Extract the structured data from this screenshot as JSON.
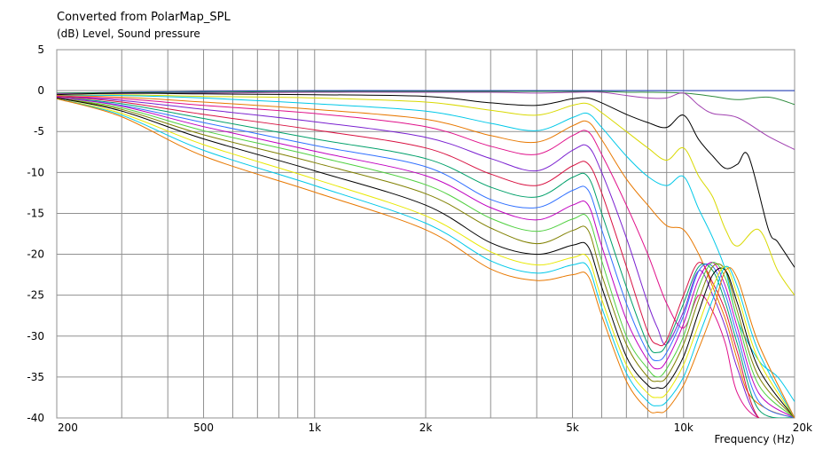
{
  "header": {
    "title": "Converted from PolarMap_SPL",
    "subtitle": "(dB)  Level, Sound pressure"
  },
  "chart_data": {
    "type": "line",
    "title": "Converted from PolarMap_SPL",
    "ylabel": "(dB)  Level, Sound pressure",
    "xlabel": "Frequency  (Hz)",
    "x_scale": "log",
    "xlim": [
      200,
      20000
    ],
    "ylim": [
      -40,
      5
    ],
    "grid": true,
    "y_ticks": [
      5,
      0,
      -5,
      -10,
      -15,
      -20,
      -25,
      -30,
      -35,
      -40
    ],
    "x_tick_labels": [
      {
        "value": 200,
        "label": "200"
      },
      {
        "value": 500,
        "label": "500"
      },
      {
        "value": 1000,
        "label": "1k"
      },
      {
        "value": 2000,
        "label": "2k"
      },
      {
        "value": 5000,
        "label": "5k"
      },
      {
        "value": 10000,
        "label": "10k"
      },
      {
        "value": 20000,
        "label": "20k"
      }
    ],
    "x_grid": [
      200,
      300,
      400,
      500,
      600,
      700,
      800,
      900,
      1000,
      2000,
      3000,
      4000,
      5000,
      6000,
      7000,
      8000,
      9000,
      10000,
      20000
    ],
    "series": [
      {
        "color": "#1f3cc0",
        "x": [
          200,
          500,
          1000,
          2000,
          5000,
          10000,
          20000
        ],
        "y": [
          -0.3,
          -0.1,
          0,
          0,
          0,
          0,
          0
        ]
      },
      {
        "color": "#2e8b3d",
        "x": [
          200,
          500,
          1000,
          2000,
          3000,
          4000,
          5000,
          6000,
          7000,
          8000,
          10000,
          12000,
          14000,
          17000,
          20000
        ],
        "y": [
          -0.3,
          -0.2,
          -0.1,
          -0.1,
          -0.1,
          -0.1,
          -0.1,
          -0.1,
          -0.2,
          -0.2,
          -0.3,
          -0.7,
          -1.1,
          -0.8,
          -1.7
        ]
      },
      {
        "color": "#a040b0",
        "x": [
          200,
          500,
          1000,
          2000,
          3000,
          4000,
          5000,
          6000,
          7000,
          8000,
          9000,
          10000,
          11000,
          12000,
          14000,
          17000,
          20000
        ],
        "y": [
          -0.4,
          -0.3,
          -0.2,
          -0.2,
          -0.2,
          -0.3,
          -0.2,
          -0.2,
          -0.6,
          -0.9,
          -0.9,
          -0.3,
          -1.8,
          -2.8,
          -3.3,
          -5.6,
          -7.2
        ]
      },
      {
        "color": "#000000",
        "x": [
          200,
          300,
          500,
          1000,
          2000,
          3000,
          4000,
          5000,
          5500,
          6000,
          7000,
          8000,
          9000,
          10000,
          11000,
          12000,
          13000,
          14000,
          15000,
          17000,
          18000,
          20000
        ],
        "y": [
          -0.5,
          -0.3,
          -0.4,
          -0.5,
          -0.7,
          -1.5,
          -1.8,
          -1.0,
          -0.9,
          -1.5,
          -2.9,
          -3.9,
          -4.5,
          -3.0,
          -6.0,
          -8.0,
          -9.5,
          -9.0,
          -8.0,
          -17.0,
          -18.5,
          -21.6
        ]
      },
      {
        "color": "#d9d900",
        "x": [
          200,
          300,
          500,
          1000,
          2000,
          3000,
          4000,
          5000,
          5500,
          6000,
          7000,
          8000,
          9000,
          10000,
          11000,
          12000,
          13000,
          14000,
          16000,
          18000,
          20000
        ],
        "y": [
          -0.6,
          -0.5,
          -0.7,
          -0.9,
          -1.4,
          -2.4,
          -3.0,
          -1.8,
          -1.6,
          -2.7,
          -5.0,
          -7.0,
          -8.5,
          -7.0,
          -10.5,
          -13.0,
          -17.0,
          -19.0,
          -17.0,
          -22.0,
          -25.0
        ]
      },
      {
        "color": "#00c8e8",
        "x": [
          200,
          300,
          500,
          1000,
          2000,
          3000,
          4000,
          5000,
          5500,
          6000,
          7000,
          8000,
          9000,
          10000,
          11000,
          12000,
          13000,
          14000,
          16000,
          18000,
          20000
        ],
        "y": [
          -0.6,
          -0.6,
          -0.9,
          -1.6,
          -2.5,
          -4.0,
          -4.9,
          -3.3,
          -2.8,
          -4.5,
          -8.0,
          -10.5,
          -11.6,
          -10.5,
          -14.5,
          -18.0,
          -22.0,
          -28.0,
          -33.0,
          -35.0,
          -38.0
        ]
      },
      {
        "color": "#e87800",
        "x": [
          200,
          300,
          500,
          1000,
          2000,
          3000,
          4000,
          5000,
          5500,
          6000,
          7000,
          8000,
          9000,
          10000,
          11000,
          12000,
          13000,
          14000,
          15000,
          17000,
          20000
        ],
        "y": [
          -0.6,
          -0.8,
          -1.4,
          -2.3,
          -3.5,
          -5.5,
          -6.3,
          -4.3,
          -3.8,
          -6.0,
          -10.8,
          -14.0,
          -16.5,
          -17.0,
          -20.0,
          -24.0,
          -28.0,
          -33.0,
          -37.0,
          -39.0,
          -40.0
        ]
      },
      {
        "color": "#e0108a",
        "x": [
          200,
          300,
          500,
          1000,
          2000,
          3000,
          4000,
          5000,
          5500,
          6000,
          7000,
          8000,
          9000,
          10000,
          11000,
          12000,
          13000,
          14000,
          16000,
          20000
        ],
        "y": [
          -0.7,
          -1.0,
          -1.8,
          -2.8,
          -4.4,
          -6.8,
          -7.8,
          -5.5,
          -5.0,
          -7.8,
          -14.0,
          -20.0,
          -26.0,
          -29.0,
          -25.0,
          -27.0,
          -31.0,
          -37.0,
          -40.0,
          -40.0
        ]
      },
      {
        "color": "#7a20d0",
        "x": [
          200,
          300,
          500,
          1000,
          2000,
          3000,
          4000,
          5000,
          5500,
          6000,
          7000,
          8000,
          8500,
          9000,
          10000,
          11000,
          12000,
          13000,
          14000,
          16000,
          20000
        ],
        "y": [
          -0.7,
          -1.2,
          -2.3,
          -3.8,
          -5.7,
          -8.3,
          -9.8,
          -7.3,
          -6.8,
          -10.0,
          -18.0,
          -26.0,
          -29.0,
          -31.0,
          -27.0,
          -22.0,
          -25.0,
          -29.0,
          -34.0,
          -40.0,
          -40.0
        ]
      },
      {
        "color": "#d81040",
        "x": [
          200,
          300,
          500,
          1000,
          2000,
          3000,
          4000,
          5000,
          5500,
          6000,
          7000,
          8000,
          8500,
          9000,
          10000,
          11000,
          12000,
          13000,
          14000,
          16000,
          20000
        ],
        "y": [
          -0.7,
          -1.4,
          -2.9,
          -4.8,
          -7.0,
          -10.2,
          -11.6,
          -9.2,
          -8.9,
          -12.5,
          -21.5,
          -29.5,
          -31.0,
          -30.5,
          -25.0,
          -21.0,
          -23.5,
          -27.0,
          -32.0,
          -40.0,
          -40.0
        ]
      },
      {
        "color": "#00a06a",
        "x": [
          200,
          300,
          500,
          1000,
          2000,
          3000,
          4000,
          5000,
          5500,
          6000,
          7000,
          8000,
          8500,
          9000,
          10000,
          11000,
          12000,
          13000,
          14000,
          16000,
          20000
        ],
        "y": [
          -0.8,
          -1.6,
          -3.4,
          -5.9,
          -8.3,
          -11.8,
          -13.0,
          -10.6,
          -10.5,
          -15.0,
          -24.0,
          -31.0,
          -32.0,
          -31.0,
          -26.0,
          -21.5,
          -22.0,
          -26.0,
          -31.0,
          -39.0,
          -40.0
        ]
      },
      {
        "color": "#3070ff",
        "x": [
          200,
          300,
          500,
          1000,
          2000,
          3000,
          4000,
          5000,
          5500,
          6000,
          7000,
          8000,
          8500,
          9000,
          10000,
          11000,
          12000,
          13000,
          14000,
          16000,
          20000
        ],
        "y": [
          -0.8,
          -1.8,
          -3.9,
          -6.7,
          -9.3,
          -13.3,
          -14.3,
          -12.2,
          -12.1,
          -17.0,
          -26.0,
          -32.0,
          -33.0,
          -32.0,
          -27.5,
          -22.0,
          -21.5,
          -25.0,
          -30.0,
          -38.0,
          -40.0
        ]
      },
      {
        "color": "#c000c0",
        "x": [
          200,
          300,
          500,
          1000,
          2000,
          3000,
          4000,
          5000,
          5500,
          6000,
          7000,
          8000,
          8500,
          9000,
          10000,
          11000,
          12000,
          13000,
          14000,
          16000,
          20000
        ],
        "y": [
          -0.8,
          -1.9,
          -4.4,
          -7.4,
          -10.4,
          -14.3,
          -15.8,
          -14.0,
          -13.9,
          -19.0,
          -28.0,
          -33.0,
          -34.0,
          -33.0,
          -28.5,
          -23.0,
          -21.0,
          -24.0,
          -29.0,
          -37.0,
          -40.0
        ]
      },
      {
        "color": "#50d040",
        "x": [
          200,
          300,
          500,
          1000,
          2000,
          3000,
          4000,
          5000,
          5500,
          6000,
          7000,
          8000,
          8500,
          9000,
          10000,
          11000,
          12000,
          13000,
          14000,
          16000,
          20000
        ],
        "y": [
          -0.9,
          -2.1,
          -4.9,
          -8.0,
          -11.5,
          -15.6,
          -17.2,
          -15.7,
          -15.5,
          -20.8,
          -30.0,
          -34.0,
          -35.0,
          -34.0,
          -30.0,
          -24.0,
          -21.0,
          -23.0,
          -28.0,
          -36.0,
          -40.0
        ]
      },
      {
        "color": "#808000",
        "x": [
          200,
          300,
          500,
          1000,
          2000,
          3000,
          4000,
          5000,
          5500,
          6000,
          7000,
          8000,
          8500,
          9000,
          10000,
          11000,
          12000,
          13000,
          14000,
          16000,
          20000
        ],
        "y": [
          -0.9,
          -2.3,
          -5.4,
          -8.8,
          -12.6,
          -16.8,
          -18.7,
          -17.1,
          -17.0,
          -22.5,
          -31.0,
          -35.0,
          -35.5,
          -35.0,
          -31.0,
          -25.5,
          -21.5,
          -22.0,
          -27.0,
          -35.0,
          -40.0
        ]
      },
      {
        "color": "#000000",
        "x": [
          200,
          300,
          500,
          1000,
          2000,
          3000,
          4000,
          5000,
          5500,
          6000,
          7000,
          8000,
          8500,
          9000,
          10000,
          11000,
          12000,
          13000,
          14000,
          16000,
          20000
        ],
        "y": [
          -0.9,
          -2.5,
          -5.9,
          -9.8,
          -14.0,
          -18.6,
          -20.0,
          -18.9,
          -19.0,
          -24.0,
          -32.5,
          -36.0,
          -36.3,
          -36.0,
          -32.5,
          -27.0,
          -22.5,
          -22.0,
          -26.0,
          -34.0,
          -40.0
        ]
      },
      {
        "color": "#e8e800",
        "x": [
          200,
          300,
          500,
          1000,
          2000,
          3000,
          4000,
          5000,
          5500,
          6000,
          7000,
          8000,
          8500,
          9000,
          10000,
          11000,
          12000,
          13000,
          14000,
          16000,
          20000
        ],
        "y": [
          -1.0,
          -2.8,
          -6.6,
          -10.8,
          -15.3,
          -19.7,
          -21.3,
          -20.4,
          -20.4,
          -25.5,
          -33.5,
          -37.0,
          -37.5,
          -37.0,
          -33.5,
          -28.5,
          -24.0,
          -21.5,
          -25.0,
          -33.0,
          -40.0
        ]
      },
      {
        "color": "#00c8e8",
        "x": [
          200,
          300,
          500,
          1000,
          2000,
          3000,
          4000,
          5000,
          5500,
          6000,
          7000,
          8000,
          8500,
          9000,
          10000,
          11000,
          12000,
          13000,
          14000,
          16000,
          20000
        ],
        "y": [
          -1.0,
          -3.0,
          -7.3,
          -11.6,
          -16.2,
          -20.8,
          -22.3,
          -21.3,
          -21.5,
          -26.5,
          -34.5,
          -38.0,
          -38.5,
          -38.0,
          -35.0,
          -30.0,
          -25.5,
          -21.5,
          -24.0,
          -32.0,
          -40.0
        ]
      },
      {
        "color": "#e87800",
        "x": [
          200,
          300,
          500,
          1000,
          2000,
          3000,
          4000,
          5000,
          5500,
          6000,
          7000,
          8000,
          8500,
          9000,
          10000,
          11000,
          12000,
          13000,
          14000,
          16000,
          20000
        ],
        "y": [
          -1.0,
          -3.2,
          -8.0,
          -12.4,
          -17.0,
          -21.8,
          -23.2,
          -22.5,
          -22.6,
          -27.5,
          -35.5,
          -39.0,
          -39.3,
          -39.0,
          -36.0,
          -31.5,
          -27.0,
          -22.0,
          -23.0,
          -31.0,
          -40.0
        ]
      }
    ]
  }
}
